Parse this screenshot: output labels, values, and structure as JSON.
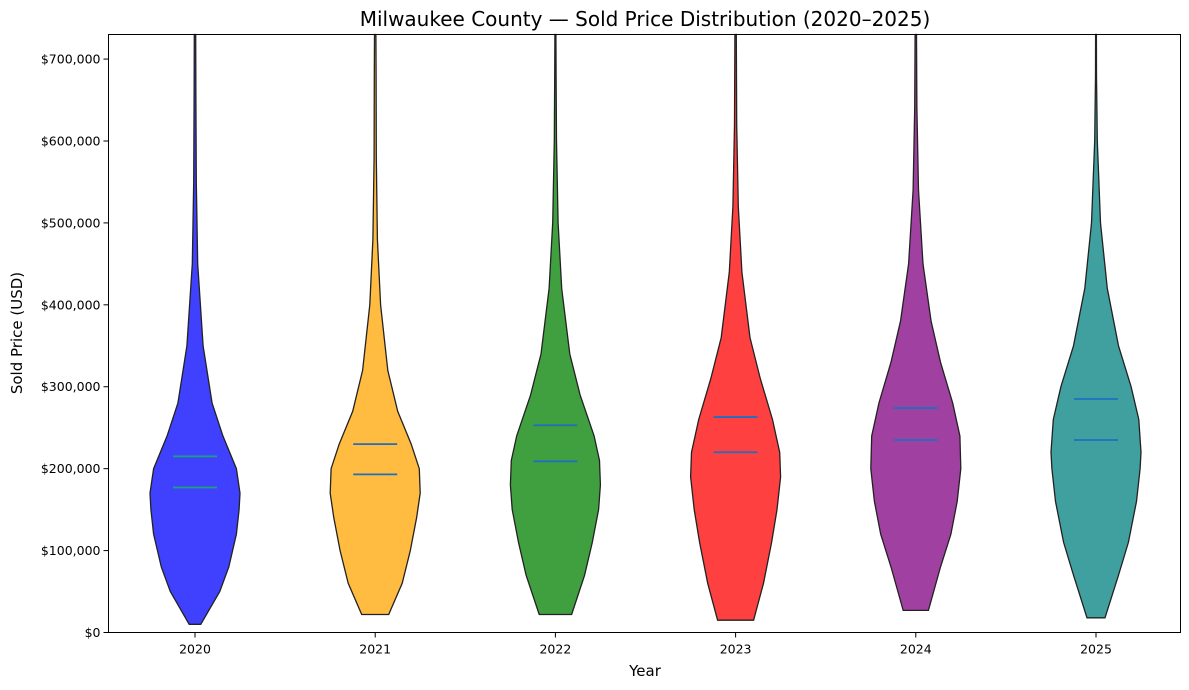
{
  "chart_data": {
    "type": "violin",
    "title": "Milwaukee County — Sold Price Distribution (2020–2025)",
    "xlabel": "Year",
    "ylabel": "Sold Price (USD)",
    "ylim": [
      0,
      730000
    ],
    "y_ticks": [
      {
        "value": 0,
        "label": "$0"
      },
      {
        "value": 100000,
        "label": "$100,000"
      },
      {
        "value": 200000,
        "label": "$200,000"
      },
      {
        "value": 300000,
        "label": "$300,000"
      },
      {
        "value": 400000,
        "label": "$400,000"
      },
      {
        "value": 500000,
        "label": "$500,000"
      },
      {
        "value": 600000,
        "label": "$600,000"
      },
      {
        "value": 700000,
        "label": "$700,000"
      }
    ],
    "categories": [
      "2020",
      "2021",
      "2022",
      "2023",
      "2024",
      "2025"
    ],
    "series": [
      {
        "name": "2020",
        "color": "#0000ff",
        "median": 177000,
        "mean": 215000,
        "stat_color": "#1aa37a",
        "min": 10000,
        "max": 730000,
        "profile": [
          [
            10000,
            0.13
          ],
          [
            50000,
            0.55
          ],
          [
            80000,
            0.75
          ],
          [
            120000,
            0.92
          ],
          [
            150000,
            0.98
          ],
          [
            170000,
            1.0
          ],
          [
            200000,
            0.92
          ],
          [
            240000,
            0.62
          ],
          [
            280000,
            0.38
          ],
          [
            350000,
            0.18
          ],
          [
            450000,
            0.06
          ],
          [
            550000,
            0.03
          ],
          [
            650000,
            0.02
          ],
          [
            730000,
            0.015
          ]
        ]
      },
      {
        "name": "2021",
        "color": "#ffa500",
        "median": 193000,
        "mean": 230000,
        "stat_color": "#1f6fc0",
        "min": 22000,
        "max": 730000,
        "profile": [
          [
            22000,
            0.3
          ],
          [
            60000,
            0.6
          ],
          [
            100000,
            0.78
          ],
          [
            140000,
            0.92
          ],
          [
            170000,
            1.0
          ],
          [
            200000,
            0.98
          ],
          [
            230000,
            0.8
          ],
          [
            270000,
            0.5
          ],
          [
            320000,
            0.28
          ],
          [
            400000,
            0.12
          ],
          [
            480000,
            0.05
          ],
          [
            580000,
            0.025
          ],
          [
            680000,
            0.02
          ],
          [
            730000,
            0.015
          ]
        ]
      },
      {
        "name": "2022",
        "color": "#008000",
        "median": 209000,
        "mean": 253000,
        "stat_color": "#1f6fc0",
        "min": 22000,
        "max": 730000,
        "profile": [
          [
            22000,
            0.36
          ],
          [
            70000,
            0.65
          ],
          [
            110000,
            0.82
          ],
          [
            150000,
            0.96
          ],
          [
            180000,
            1.0
          ],
          [
            210000,
            0.98
          ],
          [
            240000,
            0.86
          ],
          [
            290000,
            0.55
          ],
          [
            340000,
            0.32
          ],
          [
            420000,
            0.14
          ],
          [
            500000,
            0.06
          ],
          [
            600000,
            0.025
          ],
          [
            680000,
            0.015
          ],
          [
            730000,
            0.01
          ]
        ]
      },
      {
        "name": "2023",
        "color": "#ff0000",
        "median": 220000,
        "mean": 263000,
        "stat_color": "#1f6fc0",
        "min": 15000,
        "max": 730000,
        "profile": [
          [
            15000,
            0.4
          ],
          [
            60000,
            0.62
          ],
          [
            110000,
            0.8
          ],
          [
            150000,
            0.92
          ],
          [
            190000,
            1.0
          ],
          [
            220000,
            0.98
          ],
          [
            260000,
            0.82
          ],
          [
            310000,
            0.55
          ],
          [
            360000,
            0.32
          ],
          [
            440000,
            0.14
          ],
          [
            520000,
            0.06
          ],
          [
            620000,
            0.025
          ],
          [
            730000,
            0.015
          ]
        ]
      },
      {
        "name": "2024",
        "color": "#800080",
        "median": 235000,
        "mean": 274000,
        "stat_color": "#1f6fc0",
        "min": 27000,
        "max": 730000,
        "profile": [
          [
            27000,
            0.28
          ],
          [
            80000,
            0.55
          ],
          [
            120000,
            0.78
          ],
          [
            160000,
            0.92
          ],
          [
            200000,
            1.0
          ],
          [
            240000,
            0.98
          ],
          [
            280000,
            0.82
          ],
          [
            330000,
            0.55
          ],
          [
            380000,
            0.34
          ],
          [
            450000,
            0.16
          ],
          [
            540000,
            0.06
          ],
          [
            640000,
            0.025
          ],
          [
            730000,
            0.015
          ]
        ]
      },
      {
        "name": "2025",
        "color": "#008080",
        "median": 235000,
        "mean": 285000,
        "stat_color": "#1f6fc0",
        "min": 18000,
        "max": 730000,
        "profile": [
          [
            18000,
            0.2
          ],
          [
            70000,
            0.5
          ],
          [
            110000,
            0.72
          ],
          [
            160000,
            0.9
          ],
          [
            200000,
            0.98
          ],
          [
            220000,
            1.0
          ],
          [
            260000,
            0.95
          ],
          [
            300000,
            0.78
          ],
          [
            350000,
            0.5
          ],
          [
            420000,
            0.25
          ],
          [
            500000,
            0.1
          ],
          [
            600000,
            0.03
          ],
          [
            680000,
            0.012
          ],
          [
            730000,
            0.008
          ]
        ]
      }
    ]
  }
}
